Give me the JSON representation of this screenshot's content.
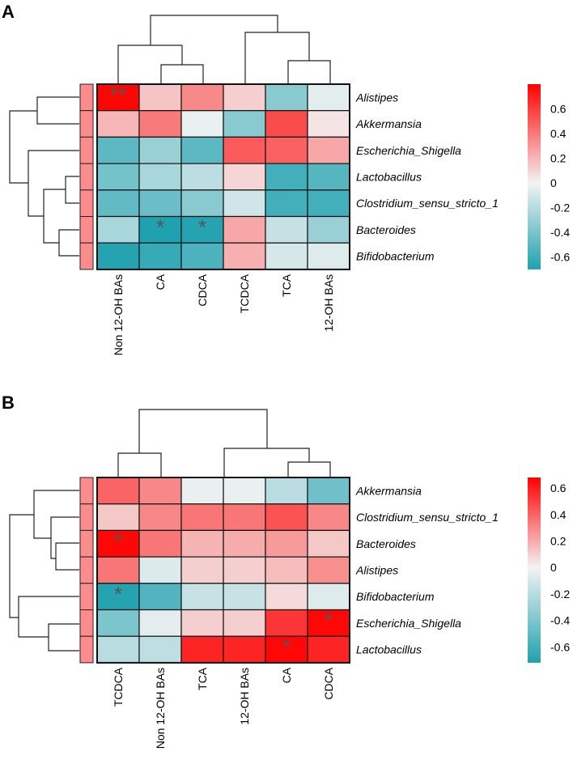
{
  "chart_data": [
    {
      "type": "heatmap",
      "panel_label": "A",
      "rows": [
        "Alistipes",
        "Akkermansia",
        "Escherichia_Shigella",
        "Lactobacillus",
        "Clostridium_sensu_stricto_1",
        "Bacteroides",
        "Bifidobacterium"
      ],
      "columns": [
        "Non 12-OH BAs",
        "CA",
        "CDCA",
        "TCDCA",
        "TCA",
        "12-OH BAs"
      ],
      "values": [
        [
          0.78,
          0.15,
          0.35,
          0.12,
          -0.35,
          -0.05
        ],
        [
          0.2,
          0.4,
          -0.03,
          -0.35,
          0.55,
          0.05
        ],
        [
          -0.5,
          -0.3,
          -0.5,
          0.5,
          0.48,
          0.25
        ],
        [
          -0.42,
          -0.25,
          -0.18,
          0.1,
          -0.58,
          -0.52
        ],
        [
          -0.48,
          -0.45,
          -0.35,
          -0.12,
          -0.58,
          -0.58
        ],
        [
          -0.25,
          -0.7,
          -0.68,
          0.25,
          -0.15,
          -0.3
        ],
        [
          -0.68,
          -0.62,
          -0.55,
          0.22,
          -0.1,
          -0.07
        ]
      ],
      "significance": [
        [
          "**",
          "",
          "",
          "",
          "",
          ""
        ],
        [
          "",
          "",
          "",
          "",
          "",
          ""
        ],
        [
          "",
          "",
          "",
          "",
          "",
          ""
        ],
        [
          "",
          "",
          "",
          "",
          "",
          ""
        ],
        [
          "",
          "",
          "",
          "",
          "",
          ""
        ],
        [
          "",
          "*",
          "*",
          "",
          "",
          ""
        ],
        [
          "",
          "",
          "",
          "",
          "",
          ""
        ]
      ],
      "colorbar": {
        "range": [
          -0.7,
          0.8
        ],
        "ticks": [
          0.6,
          0.4,
          0.2,
          0,
          -0.2,
          -0.4,
          -0.6
        ],
        "tick_labels": [
          "0.6",
          "0.4",
          "0.2",
          "0",
          "-0.2",
          "-0.4",
          "-0.6"
        ]
      }
    },
    {
      "type": "heatmap",
      "panel_label": "B",
      "rows": [
        "Akkermansia",
        "Clostridium_sensu_stricto_1",
        "Bacteroides",
        "Alistipes",
        "Bifidobacterium",
        "Escherichia_Shigella",
        "Lactobacillus"
      ],
      "columns": [
        "TCDCA",
        "Non 12-OH BAs",
        "TCA",
        "12-OH BAs",
        "CA",
        "CDCA"
      ],
      "values": [
        [
          0.4,
          0.3,
          -0.03,
          -0.03,
          -0.2,
          -0.45
        ],
        [
          0.12,
          0.3,
          0.35,
          0.35,
          0.45,
          0.3
        ],
        [
          0.66,
          0.35,
          0.18,
          0.2,
          0.25,
          0.12
        ],
        [
          0.35,
          -0.08,
          0.1,
          0.1,
          0.15,
          0.28
        ],
        [
          -0.7,
          -0.55,
          -0.15,
          -0.15,
          0.07,
          -0.07
        ],
        [
          -0.4,
          -0.05,
          0.1,
          0.1,
          0.53,
          0.66
        ],
        [
          -0.2,
          -0.18,
          0.58,
          0.58,
          0.66,
          0.58
        ]
      ],
      "significance": [
        [
          "",
          "",
          "",
          "",
          "",
          ""
        ],
        [
          "",
          "",
          "",
          "",
          "",
          ""
        ],
        [
          "*",
          "",
          "",
          "",
          "",
          ""
        ],
        [
          "",
          "",
          "",
          "",
          "",
          ""
        ],
        [
          "*",
          "",
          "",
          "",
          "",
          ""
        ],
        [
          "",
          "",
          "",
          "",
          "",
          "*"
        ],
        [
          "",
          "",
          "",
          "",
          "*",
          ""
        ]
      ],
      "colorbar": {
        "range": [
          -0.72,
          0.68
        ],
        "ticks": [
          0.6,
          0.4,
          0.2,
          0,
          -0.2,
          -0.4,
          -0.6
        ],
        "tick_labels": [
          "0.6",
          "0.4",
          "0.2",
          "0",
          "-0.2",
          "-0.4",
          "-0.6"
        ]
      }
    }
  ],
  "colors": {
    "positive": "#FF0000",
    "neutral": "#F3F3F3",
    "negative": "#1FA1AF",
    "row_annotation": "#FF8C8C"
  }
}
